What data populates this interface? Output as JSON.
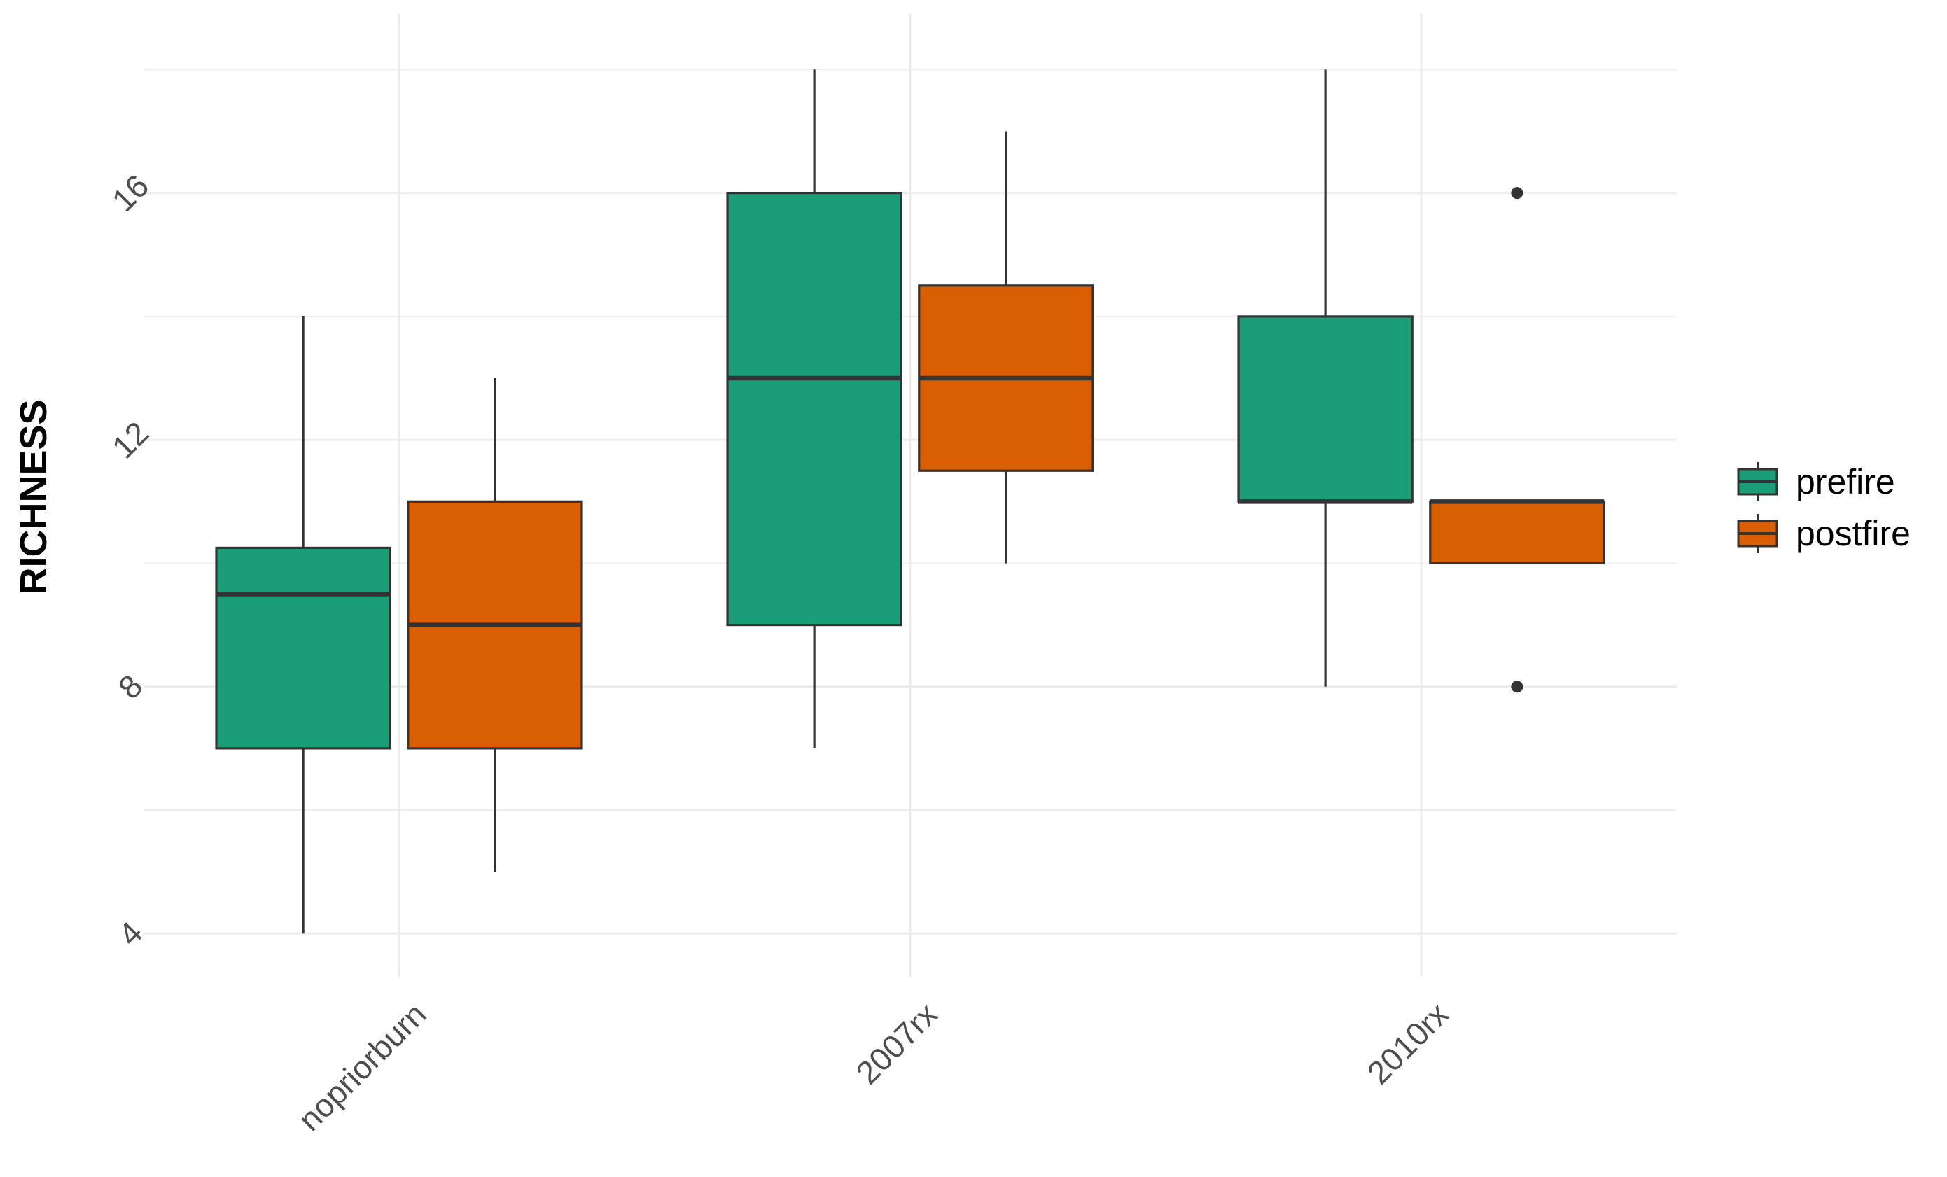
{
  "chart_data": {
    "type": "boxplot",
    "title": "",
    "xlabel": "",
    "ylabel": "RICHNESS",
    "ylim": [
      3.3,
      18.9
    ],
    "yticks": [
      4,
      8,
      12,
      16
    ],
    "yticks_minor": [
      6,
      10,
      14,
      18
    ],
    "categories": [
      "nopriorburn",
      "2007rx",
      "2010rx"
    ],
    "grid": true,
    "legend_position": "right",
    "series": [
      {
        "name": "prefire",
        "color": "#1b9e77",
        "boxes": [
          {
            "min": 4,
            "q1": 7,
            "median": 9.5,
            "q3": 10.25,
            "max": 14,
            "outliers": []
          },
          {
            "min": 7,
            "q1": 9,
            "median": 13,
            "q3": 16,
            "max": 18,
            "outliers": []
          },
          {
            "min": 8,
            "q1": 11,
            "median": 11,
            "q3": 14,
            "max": 18,
            "outliers": []
          }
        ]
      },
      {
        "name": "postfire",
        "color": "#d95f02",
        "boxes": [
          {
            "min": 5,
            "q1": 7,
            "median": 9,
            "q3": 11,
            "max": 13,
            "outliers": []
          },
          {
            "min": 10,
            "q1": 11.5,
            "median": 13,
            "q3": 14.5,
            "max": 17,
            "outliers": []
          },
          {
            "min": 10,
            "q1": 10,
            "median": 11,
            "q3": 11,
            "max": 11,
            "outliers": [
              8,
              16
            ]
          }
        ]
      }
    ]
  }
}
